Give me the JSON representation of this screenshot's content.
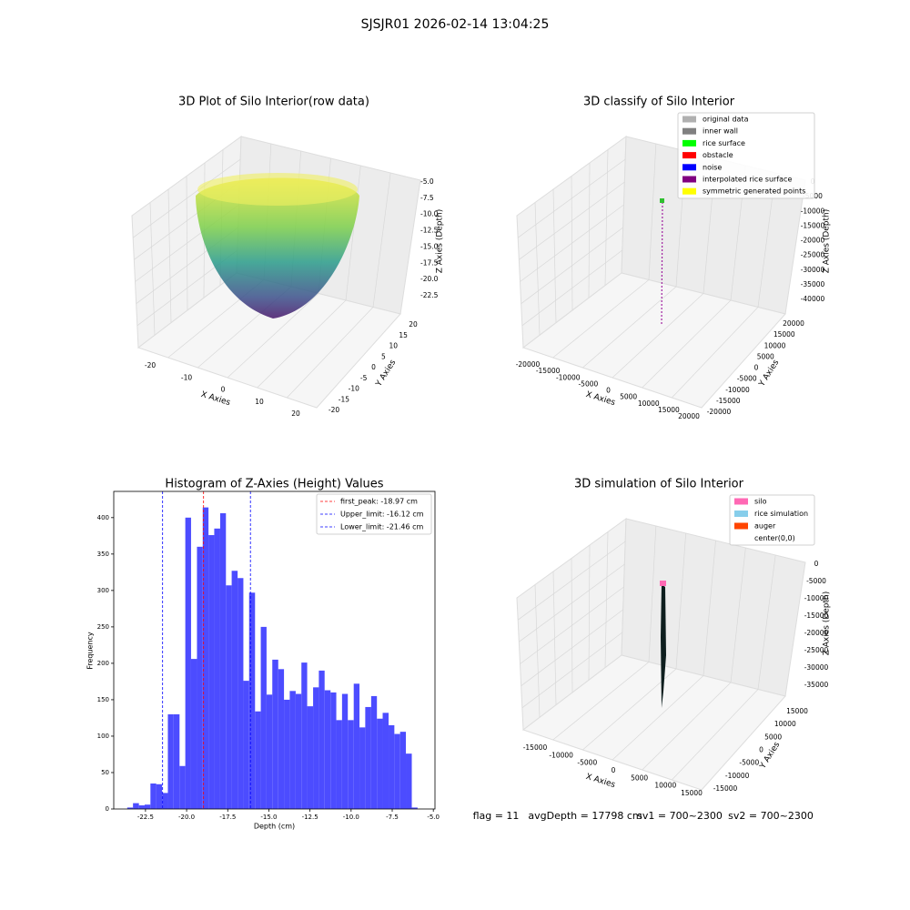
{
  "title": "SJSJR01 2026-02-14 13:04:25",
  "chart_data": [
    {
      "type": "scatter3d",
      "title": "3D Plot of Silo Interior(row data)",
      "xlabel": "X Axies",
      "ylabel": "Y Axies",
      "zlabel": "Z Axies (Depth)",
      "xticks": [
        -20,
        -10,
        0,
        10,
        20
      ],
      "yticks": [
        -20,
        -15,
        -10,
        -5,
        0,
        5,
        10,
        15,
        20
      ],
      "zticks": [
        {
          "value": -5,
          "label": "-5.0"
        },
        -7.5,
        {
          "value": -10,
          "label": "-10.0"
        },
        -12.5,
        {
          "value": -15,
          "label": "-15.0"
        },
        -17.5,
        {
          "value": -20,
          "label": "-20.0"
        },
        -22.5
      ]
    },
    {
      "type": "scatter3d",
      "title": "3D classify of Silo Interior",
      "xlabel": "X Axies",
      "ylabel": "Y Axies",
      "zlabel": "Z Axies (Depth)",
      "xticks": [
        -20000,
        -15000,
        -10000,
        -5000,
        0,
        5000,
        10000,
        15000,
        20000
      ],
      "yticks": [
        -20000,
        -15000,
        -10000,
        -5000,
        0,
        5000,
        10000,
        15000,
        20000
      ],
      "zticks": [
        0,
        -5000,
        -10000,
        -15000,
        -20000,
        -25000,
        -30000,
        -35000,
        -40000
      ],
      "legend": "upper right",
      "series": [
        {
          "name": "original data",
          "color": "#b0b0b0"
        },
        {
          "name": "inner wall",
          "color": "#808080"
        },
        {
          "name": "rice surface",
          "color": "#00ff00"
        },
        {
          "name": "obstacle",
          "color": "#ff0000"
        },
        {
          "name": "noise",
          "color": "#0000ff"
        },
        {
          "name": "interpolated rice surface",
          "color": "#800080"
        },
        {
          "name": "symmetric generated points",
          "color": "#ffff00"
        }
      ]
    },
    {
      "type": "histogram",
      "title": "Histogram of Z-Axies (Height) Values",
      "xlabel": "Depth (cm)",
      "ylabel": "Frequency",
      "color": "#4c4cff",
      "bins": [
        -23.61,
        -23.26,
        -22.9,
        -22.55,
        -22.2,
        -21.85,
        -21.49,
        -21.14,
        -20.79,
        -20.43,
        -20.08,
        -19.73,
        -19.37,
        -19.02,
        -18.67,
        -18.32,
        -17.96,
        -17.61,
        -17.26,
        -16.9,
        -16.55,
        -16.2,
        -15.84,
        -15.49,
        -15.14,
        -14.79,
        -14.43,
        -14.08,
        -13.73,
        -13.37,
        -13.02,
        -12.67,
        -12.31,
        -11.96,
        -11.61,
        -11.25,
        -10.9,
        -10.55,
        -10.2,
        -9.84,
        -9.49,
        -9.14,
        -8.78,
        -8.43,
        -8.08,
        -7.72,
        -7.37,
        -7.02,
        -6.67,
        -6.31,
        -5.96
      ],
      "values": [
        2,
        8,
        5,
        6,
        35,
        34,
        22,
        130,
        130,
        59,
        400,
        206,
        360,
        414,
        376,
        385,
        406,
        307,
        327,
        317,
        176,
        297,
        134,
        250,
        157,
        205,
        192,
        150,
        162,
        158,
        201,
        141,
        167,
        190,
        163,
        160,
        122,
        158,
        122,
        172,
        112,
        140,
        155,
        124,
        132,
        115,
        103,
        106,
        76,
        2
      ],
      "xlim": [
        -24.43,
        -4.9
      ],
      "ylim": [
        0,
        436
      ],
      "xticks": [
        -22.5,
        {
          "value": -20,
          "label": "-20.0"
        },
        -17.5,
        {
          "value": -15,
          "label": "-15.0"
        },
        -12.5,
        {
          "value": -10,
          "label": "-10.0"
        },
        -7.5,
        {
          "value": -5,
          "label": "-5.0"
        }
      ],
      "yticks": [
        0,
        50,
        100,
        150,
        200,
        250,
        300,
        350,
        400
      ],
      "legend": "upper right",
      "lines": [
        {
          "name": "first_peak: -18.97 cm",
          "value": -18.97,
          "color": "#ff0000"
        },
        {
          "name": "Upper_limit: -16.12 cm",
          "value": -16.12,
          "color": "#0000ff"
        },
        {
          "name": "Lower_limit: -21.46 cm",
          "value": -21.46,
          "color": "#0000ff"
        }
      ]
    },
    {
      "type": "surface3d",
      "title": "3D simulation of Silo Interior",
      "xlabel": "X Axies",
      "ylabel": "Y Axies",
      "zlabel": "Z Axies (Depth)",
      "xticks": [
        -15000,
        -10000,
        -5000,
        0,
        5000,
        10000,
        15000
      ],
      "yticks": [
        -15000,
        -10000,
        -5000,
        0,
        5000,
        10000,
        15000
      ],
      "zticks": [
        0,
        -5000,
        -10000,
        -15000,
        -20000,
        -25000,
        -30000,
        -35000
      ],
      "legend": "upper right",
      "series": [
        {
          "name": "silo",
          "color": "#ff69b4"
        },
        {
          "name": "rice simulation",
          "color": "#87ceeb"
        },
        {
          "name": "auger",
          "color": "#ff4500"
        },
        {
          "name": "center(0,0)",
          "color": "#ffffff"
        }
      ]
    }
  ],
  "status": [
    "flag = 11",
    "avgDepth = 17798 cm",
    "sv1 = 700~2300",
    "sv2 = 700~2300"
  ]
}
